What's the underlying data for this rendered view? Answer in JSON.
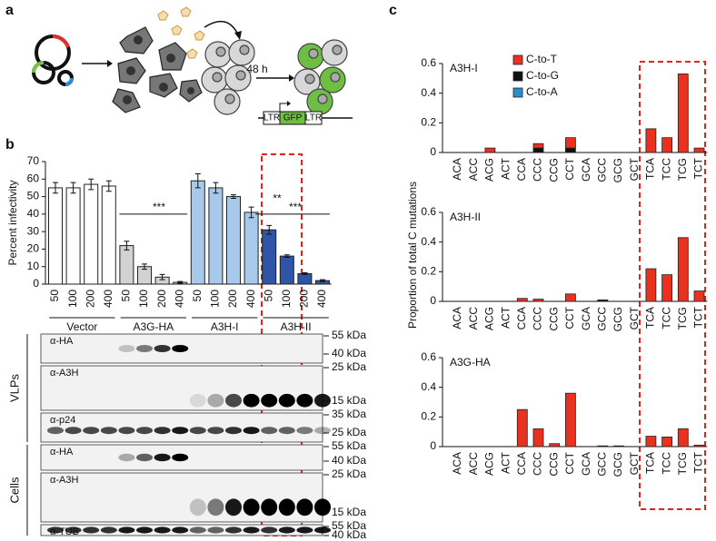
{
  "panel_labels": [
    "a",
    "b",
    "c"
  ],
  "schematic": {
    "time": "48 h",
    "construct": [
      "LTR",
      "GFP",
      "LTR"
    ]
  },
  "chart_data": [
    {
      "type": "bar",
      "ylabel": "Percent infectivity",
      "categories": [
        "50",
        "100",
        "200",
        "400",
        "50",
        "100",
        "200",
        "400",
        "50",
        "100",
        "200",
        "400",
        "50",
        "100",
        "200",
        "400"
      ],
      "values": [
        55,
        55,
        57,
        56,
        22,
        10,
        4,
        1,
        59,
        55,
        50,
        41,
        31,
        16,
        6,
        2
      ],
      "errors": [
        3,
        3,
        3,
        3,
        2.5,
        1.5,
        1.5,
        0.5,
        4,
        3,
        1,
        3,
        2.5,
        0.7,
        0.5,
        0.5
      ],
      "groups": [
        {
          "name": "Vector",
          "color": "#ffffff"
        },
        {
          "name": "A3G-HA",
          "color": "#d2d2d2"
        },
        {
          "name": "A3H-I",
          "color": "#a9c9ea"
        },
        {
          "name": "A3H-II",
          "color": "#2e55a6"
        }
      ],
      "annotations": [
        "***",
        "**",
        "***"
      ],
      "ylim": [
        0,
        70
      ],
      "yticks": [
        0,
        10,
        20,
        30,
        40,
        50,
        60,
        70
      ]
    },
    {
      "type": "stacked_bar",
      "ylabel": "Proportion of total C mutations",
      "panel_titles": [
        "A3H-I",
        "A3H-II",
        "A3G-HA"
      ],
      "categories": [
        "ACA",
        "ACC",
        "ACG",
        "ACT",
        "CCA",
        "CCC",
        "CCG",
        "CCT",
        "GCA",
        "GCC",
        "GCG",
        "GCT",
        "TCA",
        "TCC",
        "TCG",
        "TCT"
      ],
      "series": [
        {
          "name": "C-to-T",
          "color": "#e8321f",
          "values": [
            [
              0,
              0,
              0.03,
              0,
              0,
              0.03,
              0,
              0.07,
              0,
              0,
              0,
              0,
              0.16,
              0.1,
              0.53,
              0.03
            ],
            [
              0,
              0,
              0,
              0,
              0.02,
              0.015,
              0,
              0.05,
              0,
              0.005,
              0,
              0,
              0.22,
              0.18,
              0.43,
              0.07
            ],
            [
              0,
              0,
              0,
              0,
              0.25,
              0.12,
              0.02,
              0.36,
              0,
              0,
              0,
              0,
              0.07,
              0.065,
              0.12,
              0.01
            ]
          ]
        },
        {
          "name": "C-to-G",
          "color": "#111111",
          "values": [
            [
              0,
              0,
              0,
              0,
              0,
              0.03,
              0,
              0.03,
              0,
              0,
              0,
              0,
              0,
              0,
              0,
              0
            ],
            [
              0,
              0,
              0,
              0,
              0,
              0,
              0,
              0,
              0,
              0.005,
              0,
              0,
              0,
              0,
              0,
              0
            ],
            [
              0,
              0,
              0,
              0,
              0,
              0,
              0,
              0,
              0,
              0.005,
              0.005,
              0,
              0,
              0,
              0,
              0
            ]
          ]
        },
        {
          "name": "C-to-A",
          "color": "#2d8ccd",
          "values": [
            [
              0,
              0,
              0,
              0,
              0,
              0,
              0,
              0,
              0,
              0,
              0,
              0,
              0,
              0,
              0,
              0
            ],
            [
              0,
              0,
              0,
              0,
              0,
              0,
              0,
              0,
              0,
              0,
              0,
              0,
              0,
              0,
              0,
              0
            ],
            [
              0,
              0,
              0,
              0,
              0,
              0,
              0,
              0,
              0,
              0,
              0,
              0,
              0,
              0,
              0,
              0
            ]
          ]
        }
      ],
      "ylim": [
        0,
        0.6
      ],
      "yticks": [
        0,
        0.2,
        0.4,
        0.6
      ]
    }
  ],
  "blots": [
    {
      "name": "VLPs",
      "rows": [
        {
          "antibody": "α-HA",
          "markers": [
            "55 kDa",
            "40 kDa"
          ]
        },
        {
          "antibody": "α-A3H",
          "markers": [
            "25 kDa",
            "15 kDa"
          ]
        },
        {
          "antibody": "α-p24",
          "markers": [
            "35 kDa",
            "25 kDa"
          ]
        }
      ]
    },
    {
      "name": "Cells",
      "rows": [
        {
          "antibody": "α-HA",
          "markers": [
            "55 kDa",
            "40 kDa"
          ]
        },
        {
          "antibody": "α-A3H",
          "markers": [
            "25 kDa",
            "15 kDa"
          ]
        },
        {
          "antibody": "α-TUB",
          "markers": [
            "55 kDa",
            "40 kDa"
          ]
        }
      ]
    }
  ]
}
